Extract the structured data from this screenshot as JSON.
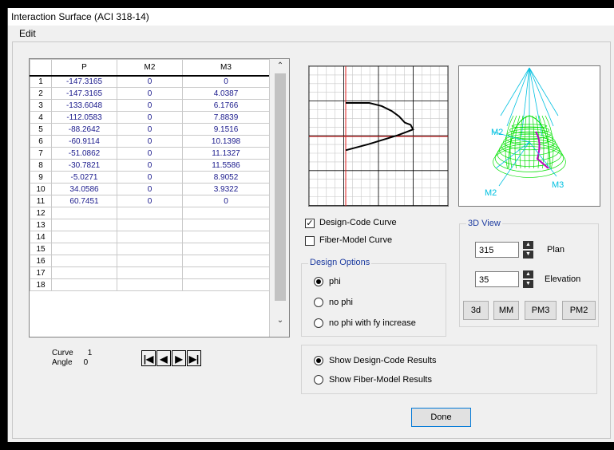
{
  "window": {
    "title": "Interaction Surface  (ACI 318-14)"
  },
  "menu": {
    "edit": "Edit"
  },
  "table": {
    "headers": [
      "P",
      "M2",
      "M3"
    ],
    "rows": [
      {
        "n": "1",
        "p": "-147.3165",
        "m2": "0",
        "m3": "0"
      },
      {
        "n": "2",
        "p": "-147.3165",
        "m2": "0",
        "m3": "4.0387"
      },
      {
        "n": "3",
        "p": "-133.6048",
        "m2": "0",
        "m3": "6.1766"
      },
      {
        "n": "4",
        "p": "-112.0583",
        "m2": "0",
        "m3": "7.8839"
      },
      {
        "n": "5",
        "p": "-88.2642",
        "m2": "0",
        "m3": "9.1516"
      },
      {
        "n": "6",
        "p": "-60.9114",
        "m2": "0",
        "m3": "10.1398"
      },
      {
        "n": "7",
        "p": "-51.0862",
        "m2": "0",
        "m3": "11.1327"
      },
      {
        "n": "8",
        "p": "-30.7821",
        "m2": "0",
        "m3": "11.5586"
      },
      {
        "n": "9",
        "p": "-5.0271",
        "m2": "0",
        "m3": "8.9052"
      },
      {
        "n": "10",
        "p": "34.0586",
        "m2": "0",
        "m3": "3.9322"
      },
      {
        "n": "11",
        "p": "60.7451",
        "m2": "0",
        "m3": "0"
      },
      {
        "n": "12",
        "p": "",
        "m2": "",
        "m3": ""
      },
      {
        "n": "13",
        "p": "",
        "m2": "",
        "m3": ""
      },
      {
        "n": "14",
        "p": "",
        "m2": "",
        "m3": ""
      },
      {
        "n": "15",
        "p": "",
        "m2": "",
        "m3": ""
      },
      {
        "n": "16",
        "p": "",
        "m2": "",
        "m3": ""
      },
      {
        "n": "17",
        "p": "",
        "m2": "",
        "m3": ""
      },
      {
        "n": "18",
        "p": "",
        "m2": "",
        "m3": ""
      }
    ]
  },
  "curve": {
    "curve_label": "Curve",
    "curve_value": "1",
    "angle_label": "Angle",
    "angle_value": "0"
  },
  "options": {
    "design_code_curve": "Design-Code Curve",
    "fiber_model_curve": "Fiber-Model Curve",
    "design_code_checked": true,
    "fiber_model_checked": false
  },
  "design_options": {
    "title": "Design Options",
    "items": [
      "phi",
      "no phi",
      "no phi with fy increase"
    ],
    "selected": "phi"
  },
  "view3d": {
    "title": "3D View",
    "plan_value": "315",
    "plan_label": "Plan",
    "elevation_value": "35",
    "elevation_label": "Elevation",
    "buttons": [
      "3d",
      "MM",
      "PM3",
      "PM2"
    ],
    "axis_labels": [
      "M2",
      "M2",
      "M3"
    ]
  },
  "results": {
    "items": [
      "Show Design-Code Results",
      "Show Fiber-Model Results"
    ],
    "selected": "Show Design-Code Results"
  },
  "done_label": "Done",
  "colors": {
    "grid": "#c8c8c8",
    "axis": "#e02020",
    "mesh": "#00e000",
    "highlight": "#c000c0",
    "rays": "#00c0e0"
  }
}
